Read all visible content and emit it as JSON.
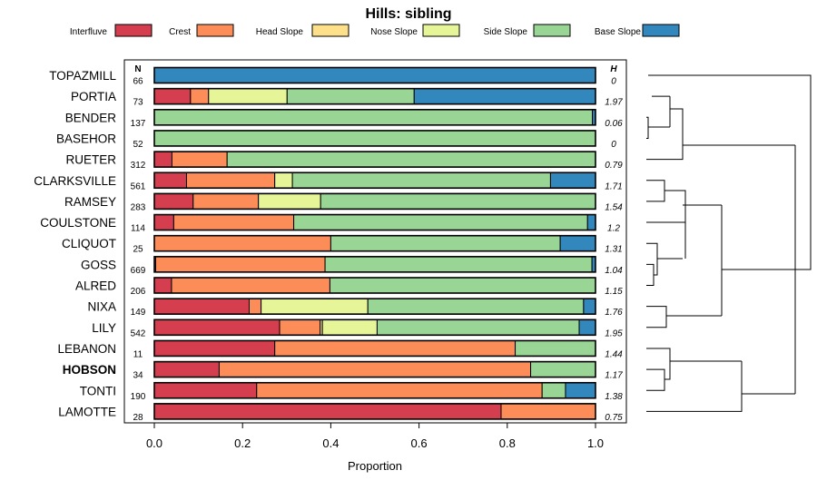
{
  "chart_data": {
    "type": "bar",
    "orientation": "horizontal",
    "stacked": true,
    "title": "Hills: sibling",
    "xlabel": "Proportion",
    "xlim": [
      0,
      1
    ],
    "xticks": [
      "0.0",
      "0.2",
      "0.4",
      "0.6",
      "0.8",
      "1.0"
    ],
    "n_header": "N",
    "h_header": "H",
    "legend": [
      {
        "name": "Interfluve",
        "color": "#D53E4F"
      },
      {
        "name": "Crest",
        "color": "#FC8D59"
      },
      {
        "name": "Head Slope",
        "color": "#FEE08B"
      },
      {
        "name": "Nose Slope",
        "color": "#E6F598"
      },
      {
        "name": "Side Slope",
        "color": "#99D594"
      },
      {
        "name": "Base Slope",
        "color": "#3288BD"
      }
    ],
    "rows": [
      {
        "name": "TOPAZMILL",
        "n": "66",
        "h": "0",
        "bold": false,
        "values": [
          0,
          0,
          0,
          0,
          0,
          1.0
        ]
      },
      {
        "name": "PORTIA",
        "n": "73",
        "h": "1.97",
        "bold": false,
        "values": [
          0.082,
          0.041,
          0,
          0.178,
          0.288,
          0.411
        ]
      },
      {
        "name": "BENDER",
        "n": "137",
        "h": "0.06",
        "bold": false,
        "values": [
          0,
          0,
          0,
          0,
          0.993,
          0.007
        ]
      },
      {
        "name": "BASEHOR",
        "n": "52",
        "h": "0",
        "bold": false,
        "values": [
          0,
          0,
          0,
          0,
          1.0,
          0
        ]
      },
      {
        "name": "RUETER",
        "n": "312",
        "h": "0.79",
        "bold": false,
        "values": [
          0.04,
          0.125,
          0,
          0,
          0.835,
          0
        ]
      },
      {
        "name": "CLARKSVILLE",
        "n": "561",
        "h": "1.71",
        "bold": false,
        "values": [
          0.073,
          0.2,
          0,
          0.04,
          0.585,
          0.102
        ]
      },
      {
        "name": "RAMSEY",
        "n": "283",
        "h": "1.54",
        "bold": false,
        "values": [
          0.088,
          0.148,
          0,
          0.141,
          0.623,
          0
        ]
      },
      {
        "name": "COULSTONE",
        "n": "114",
        "h": "1.2",
        "bold": false,
        "values": [
          0.044,
          0.272,
          0,
          0,
          0.666,
          0.018
        ]
      },
      {
        "name": "CLIQUOT",
        "n": "25",
        "h": "1.31",
        "bold": false,
        "values": [
          0,
          0.4,
          0,
          0,
          0.52,
          0.08
        ]
      },
      {
        "name": "GOSS",
        "n": "669",
        "h": "1.04",
        "bold": false,
        "values": [
          0.003,
          0.384,
          0,
          0,
          0.605,
          0.008
        ]
      },
      {
        "name": "ALRED",
        "n": "206",
        "h": "1.15",
        "bold": false,
        "values": [
          0.039,
          0.359,
          0,
          0,
          0.602,
          0
        ]
      },
      {
        "name": "NIXA",
        "n": "149",
        "h": "1.76",
        "bold": false,
        "values": [
          0.215,
          0.027,
          0,
          0.242,
          0.489,
          0.027
        ]
      },
      {
        "name": "LILY",
        "n": "542",
        "h": "1.95",
        "bold": false,
        "values": [
          0.284,
          0.092,
          0.005,
          0.124,
          0.458,
          0.037
        ]
      },
      {
        "name": "LEBANON",
        "n": "11",
        "h": "1.44",
        "bold": false,
        "values": [
          0.273,
          0.545,
          0,
          0,
          0.182,
          0
        ]
      },
      {
        "name": "HOBSON",
        "n": "34",
        "h": "1.17",
        "bold": true,
        "values": [
          0.147,
          0.706,
          0,
          0,
          0.147,
          0
        ]
      },
      {
        "name": "TONTI",
        "n": "190",
        "h": "1.38",
        "bold": false,
        "values": [
          0.232,
          0.647,
          0,
          0,
          0.053,
          0.068
        ]
      },
      {
        "name": "LAMOTTE",
        "n": "28",
        "h": "0.75",
        "bold": false,
        "values": [
          0.786,
          0.214,
          0,
          0,
          0,
          0
        ]
      }
    ]
  }
}
